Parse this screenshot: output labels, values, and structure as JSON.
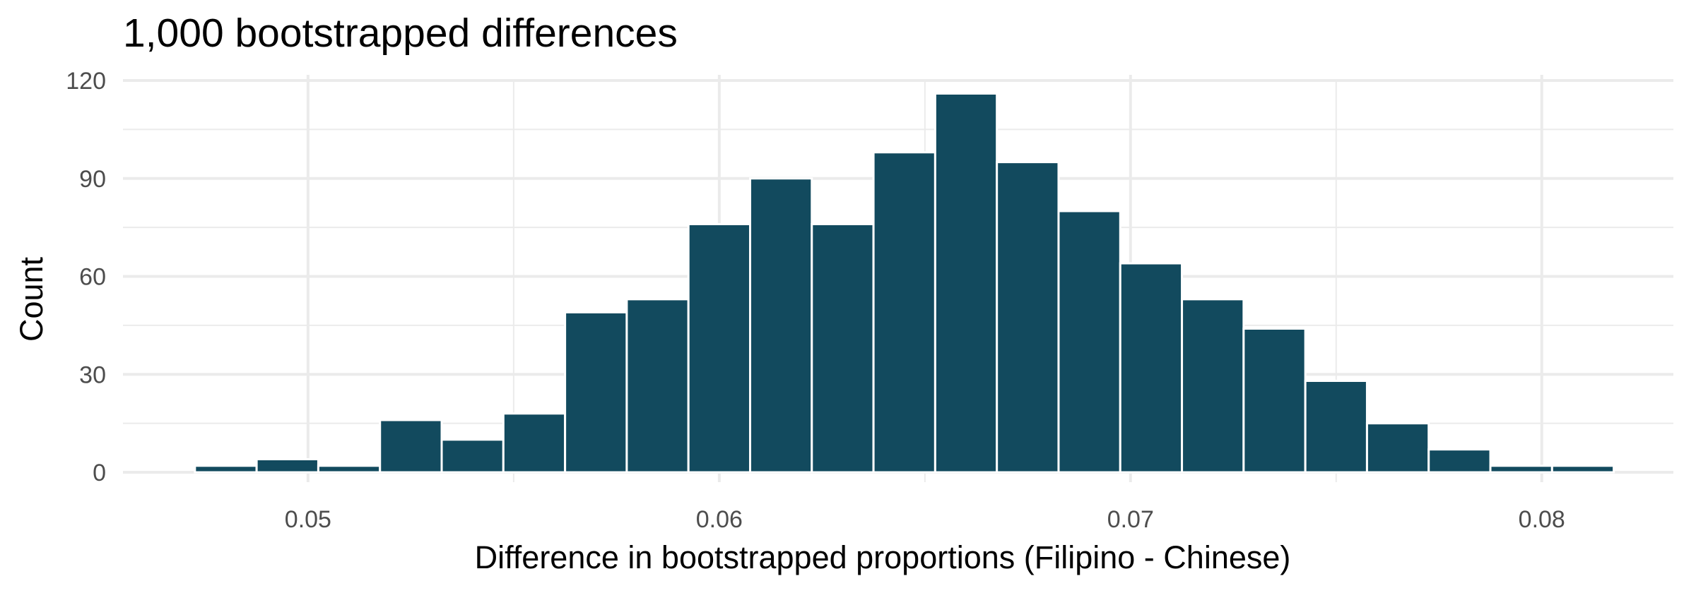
{
  "chart_data": {
    "type": "bar",
    "title": "1,000 bootstrapped differences",
    "xlabel": "Difference in bootstrapped proportions (Filipino - Chinese)",
    "ylabel": "Count",
    "bar_color": "#124a5e",
    "grid": true,
    "bin_width": 0.0015,
    "bins": [
      {
        "x": 0.048,
        "count": 2
      },
      {
        "x": 0.0495,
        "count": 4
      },
      {
        "x": 0.051,
        "count": 2
      },
      {
        "x": 0.0525,
        "count": 16
      },
      {
        "x": 0.054,
        "count": 10
      },
      {
        "x": 0.0555,
        "count": 18
      },
      {
        "x": 0.057,
        "count": 49
      },
      {
        "x": 0.0585,
        "count": 53
      },
      {
        "x": 0.06,
        "count": 76
      },
      {
        "x": 0.0615,
        "count": 90
      },
      {
        "x": 0.063,
        "count": 76
      },
      {
        "x": 0.0645,
        "count": 98
      },
      {
        "x": 0.066,
        "count": 116
      },
      {
        "x": 0.0675,
        "count": 95
      },
      {
        "x": 0.069,
        "count": 80
      },
      {
        "x": 0.0705,
        "count": 64
      },
      {
        "x": 0.072,
        "count": 53
      },
      {
        "x": 0.0735,
        "count": 44
      },
      {
        "x": 0.075,
        "count": 28
      },
      {
        "x": 0.0765,
        "count": 15
      },
      {
        "x": 0.078,
        "count": 7
      },
      {
        "x": 0.0795,
        "count": 2
      },
      {
        "x": 0.081,
        "count": 2
      }
    ],
    "xlim": [
      0.0455,
      0.0832
    ],
    "ylim": [
      0,
      120
    ],
    "x_ticks": [
      {
        "value": 0.05,
        "label": "0.05"
      },
      {
        "value": 0.06,
        "label": "0.06"
      },
      {
        "value": 0.07,
        "label": "0.07"
      },
      {
        "value": 0.08,
        "label": "0.08"
      }
    ],
    "y_ticks": [
      {
        "value": 0,
        "label": "0"
      },
      {
        "value": 30,
        "label": "30"
      },
      {
        "value": 60,
        "label": "60"
      },
      {
        "value": 90,
        "label": "90"
      },
      {
        "value": 120,
        "label": "120"
      }
    ]
  }
}
